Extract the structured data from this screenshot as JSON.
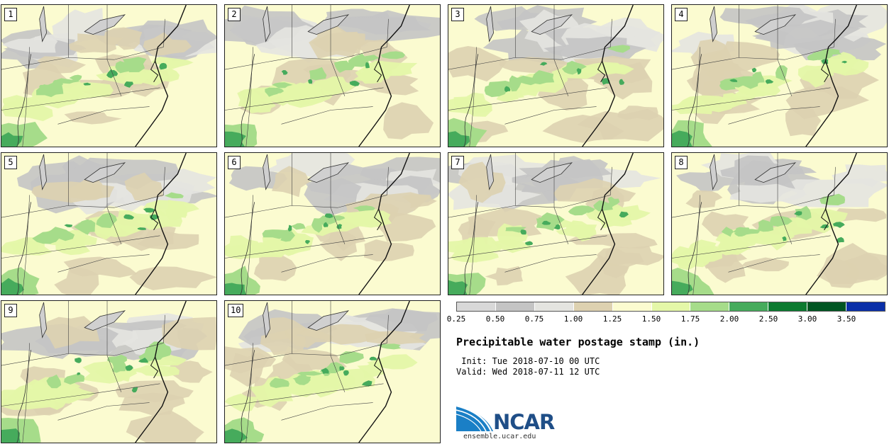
{
  "panels": [
    {
      "label": "1"
    },
    {
      "label": "2"
    },
    {
      "label": "3"
    },
    {
      "label": "4"
    },
    {
      "label": "5"
    },
    {
      "label": "6"
    },
    {
      "label": "7"
    },
    {
      "label": "8"
    },
    {
      "label": "9"
    },
    {
      "label": "10"
    }
  ],
  "colorbar": {
    "levels": [
      "0.25",
      "0.50",
      "0.75",
      "1.00",
      "1.25",
      "1.50",
      "1.75",
      "2.00",
      "2.50",
      "3.00",
      "3.50"
    ],
    "colors": [
      "#d8d8d8",
      "#c4c4c4",
      "#e4e4e0",
      "#ddd1b0",
      "#fbfbd0",
      "#e4f7a8",
      "#a6dc8a",
      "#46ab5c",
      "#0c7a30",
      "#005522",
      "#0a2fa8"
    ]
  },
  "title": "Precipitable water postage stamp (in.)",
  "init_line": " Init: Tue 2018-07-10 00 UTC",
  "valid_line": "Valid: Wed 2018-07-11 12 UTC",
  "logo": {
    "text": "NCAR",
    "url": "ensemble.ucar.edu"
  }
}
